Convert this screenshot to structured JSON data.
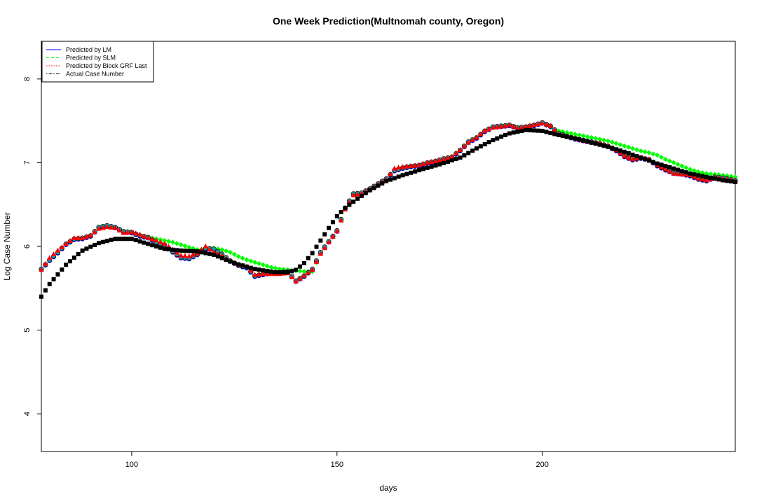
{
  "chart_data": {
    "type": "line",
    "title": "One Week Prediction(Multnomah county, Oregon)",
    "xlabel": "days",
    "ylabel": "Log Case Number",
    "xlim": [
      78,
      247
    ],
    "ylim": [
      3.55,
      8.45
    ],
    "xticks": [
      100,
      150,
      200
    ],
    "yticks": [
      4,
      5,
      6,
      7,
      8
    ],
    "grid": false,
    "legend_position": "top-left",
    "legend": [
      {
        "label": "Predicted by LM",
        "color": "#0000ff",
        "dash": "solid"
      },
      {
        "label": "Predicted by SLM",
        "color": "#00ff00",
        "dash": "dashed"
      },
      {
        "label": "Predicted by Block GRF Last",
        "color": "#ff0000",
        "dash": "dotted"
      },
      {
        "label": "Actual Case Number",
        "color": "#000000",
        "dash": "dotdash"
      }
    ],
    "actual_anchor_x": [
      78,
      80,
      84,
      88,
      92,
      96,
      100,
      104,
      108,
      112,
      116,
      120,
      125,
      130,
      135,
      138,
      140,
      142,
      144,
      146,
      148,
      150,
      152,
      155,
      158,
      162,
      166,
      170,
      175,
      180,
      184,
      188,
      192,
      196,
      200,
      204,
      208,
      212,
      216,
      220,
      224,
      228,
      232,
      236,
      240,
      244,
      247
    ],
    "actual_anchor_y": [
      5.4,
      5.55,
      5.78,
      5.95,
      6.04,
      6.09,
      6.09,
      6.03,
      5.97,
      5.95,
      5.94,
      5.9,
      5.8,
      5.73,
      5.69,
      5.69,
      5.72,
      5.8,
      5.92,
      6.07,
      6.22,
      6.36,
      6.46,
      6.57,
      6.67,
      6.78,
      6.85,
      6.91,
      6.98,
      7.06,
      7.17,
      7.27,
      7.35,
      7.39,
      7.38,
      7.33,
      7.29,
      7.24,
      7.19,
      7.13,
      7.06,
      6.99,
      6.93,
      6.87,
      6.83,
      6.79,
      6.77
    ],
    "predicted_anchor_x": [
      78,
      80,
      82,
      84,
      86,
      88,
      90,
      92,
      94,
      96,
      98,
      100,
      102,
      104,
      106,
      108,
      110,
      112,
      114,
      116,
      118,
      120,
      122,
      124,
      126,
      128,
      130,
      132,
      134,
      136,
      138,
      140,
      142,
      144,
      146,
      148,
      150,
      152,
      154,
      156,
      158,
      160,
      162,
      164,
      166,
      168,
      170,
      172,
      174,
      176,
      178,
      180,
      182,
      184,
      186,
      188,
      190,
      192,
      194,
      196,
      198,
      200,
      202,
      204,
      206,
      208,
      210,
      212,
      214,
      216,
      218,
      220,
      222,
      224,
      226,
      228,
      230,
      232,
      234,
      236,
      238,
      240,
      242,
      244,
      247
    ],
    "lm_anchor_y": [
      5.72,
      5.83,
      5.92,
      6.02,
      6.08,
      6.09,
      6.12,
      6.22,
      6.24,
      6.22,
      6.17,
      6.16,
      6.12,
      6.1,
      6.04,
      6.01,
      5.93,
      5.86,
      5.85,
      5.9,
      5.97,
      5.96,
      5.9,
      5.82,
      5.77,
      5.74,
      5.64,
      5.66,
      5.68,
      5.68,
      5.69,
      5.58,
      5.64,
      5.72,
      5.92,
      6.05,
      6.18,
      6.45,
      6.62,
      6.63,
      6.68,
      6.74,
      6.8,
      6.9,
      6.93,
      6.95,
      6.96,
      6.99,
      7.01,
      7.04,
      7.06,
      7.14,
      7.24,
      7.29,
      7.37,
      7.42,
      7.43,
      7.44,
      7.41,
      7.42,
      7.44,
      7.47,
      7.43,
      7.34,
      7.31,
      7.28,
      7.26,
      7.24,
      7.22,
      7.19,
      7.14,
      7.07,
      7.03,
      7.05,
      7.03,
      6.96,
      6.91,
      6.87,
      6.86,
      6.84,
      6.8,
      6.78,
      6.82,
      6.81,
      6.78
    ],
    "slm_anchor_y": [
      5.72,
      5.83,
      5.92,
      6.02,
      6.08,
      6.09,
      6.12,
      6.23,
      6.24,
      6.22,
      6.17,
      6.16,
      6.14,
      6.11,
      6.09,
      6.07,
      6.05,
      6.02,
      5.99,
      5.96,
      5.97,
      5.98,
      5.96,
      5.93,
      5.88,
      5.84,
      5.81,
      5.78,
      5.75,
      5.73,
      5.72,
      5.71,
      5.7,
      5.7,
      5.92,
      6.05,
      6.18,
      6.45,
      6.62,
      6.63,
      6.68,
      6.74,
      6.8,
      6.9,
      6.93,
      6.95,
      6.96,
      6.99,
      7.01,
      7.04,
      7.06,
      7.14,
      7.24,
      7.29,
      7.37,
      7.42,
      7.43,
      7.44,
      7.41,
      7.42,
      7.44,
      7.47,
      7.42,
      7.38,
      7.36,
      7.34,
      7.32,
      7.3,
      7.28,
      7.26,
      7.23,
      7.2,
      7.17,
      7.14,
      7.12,
      7.09,
      7.04,
      7,
      6.96,
      6.92,
      6.89,
      6.87,
      6.86,
      6.85,
      6.83
    ],
    "grf_anchor_y": [
      5.72,
      5.86,
      5.95,
      6.03,
      6.1,
      6.1,
      6.13,
      6.21,
      6.23,
      6.22,
      6.16,
      6.17,
      6.14,
      6.1,
      6.07,
      6.03,
      5.96,
      5.89,
      5.88,
      5.92,
      6,
      5.93,
      5.89,
      5.82,
      5.78,
      5.76,
      5.66,
      5.67,
      5.67,
      5.67,
      5.68,
      5.58,
      5.65,
      5.72,
      5.91,
      6.05,
      6.18,
      6.44,
      6.61,
      6.63,
      6.68,
      6.74,
      6.8,
      6.93,
      6.95,
      6.96,
      6.97,
      7,
      7.02,
      7.04,
      7.07,
      7.15,
      7.24,
      7.3,
      7.38,
      7.42,
      7.43,
      7.45,
      7.41,
      7.43,
      7.45,
      7.47,
      7.44,
      7.34,
      7.31,
      7.29,
      7.26,
      7.24,
      7.23,
      7.2,
      7.15,
      7.08,
      7.04,
      7.06,
      7.04,
      6.97,
      6.92,
      6.87,
      6.86,
      6.85,
      6.81,
      6.79,
      6.82,
      6.81,
      6.78
    ]
  }
}
